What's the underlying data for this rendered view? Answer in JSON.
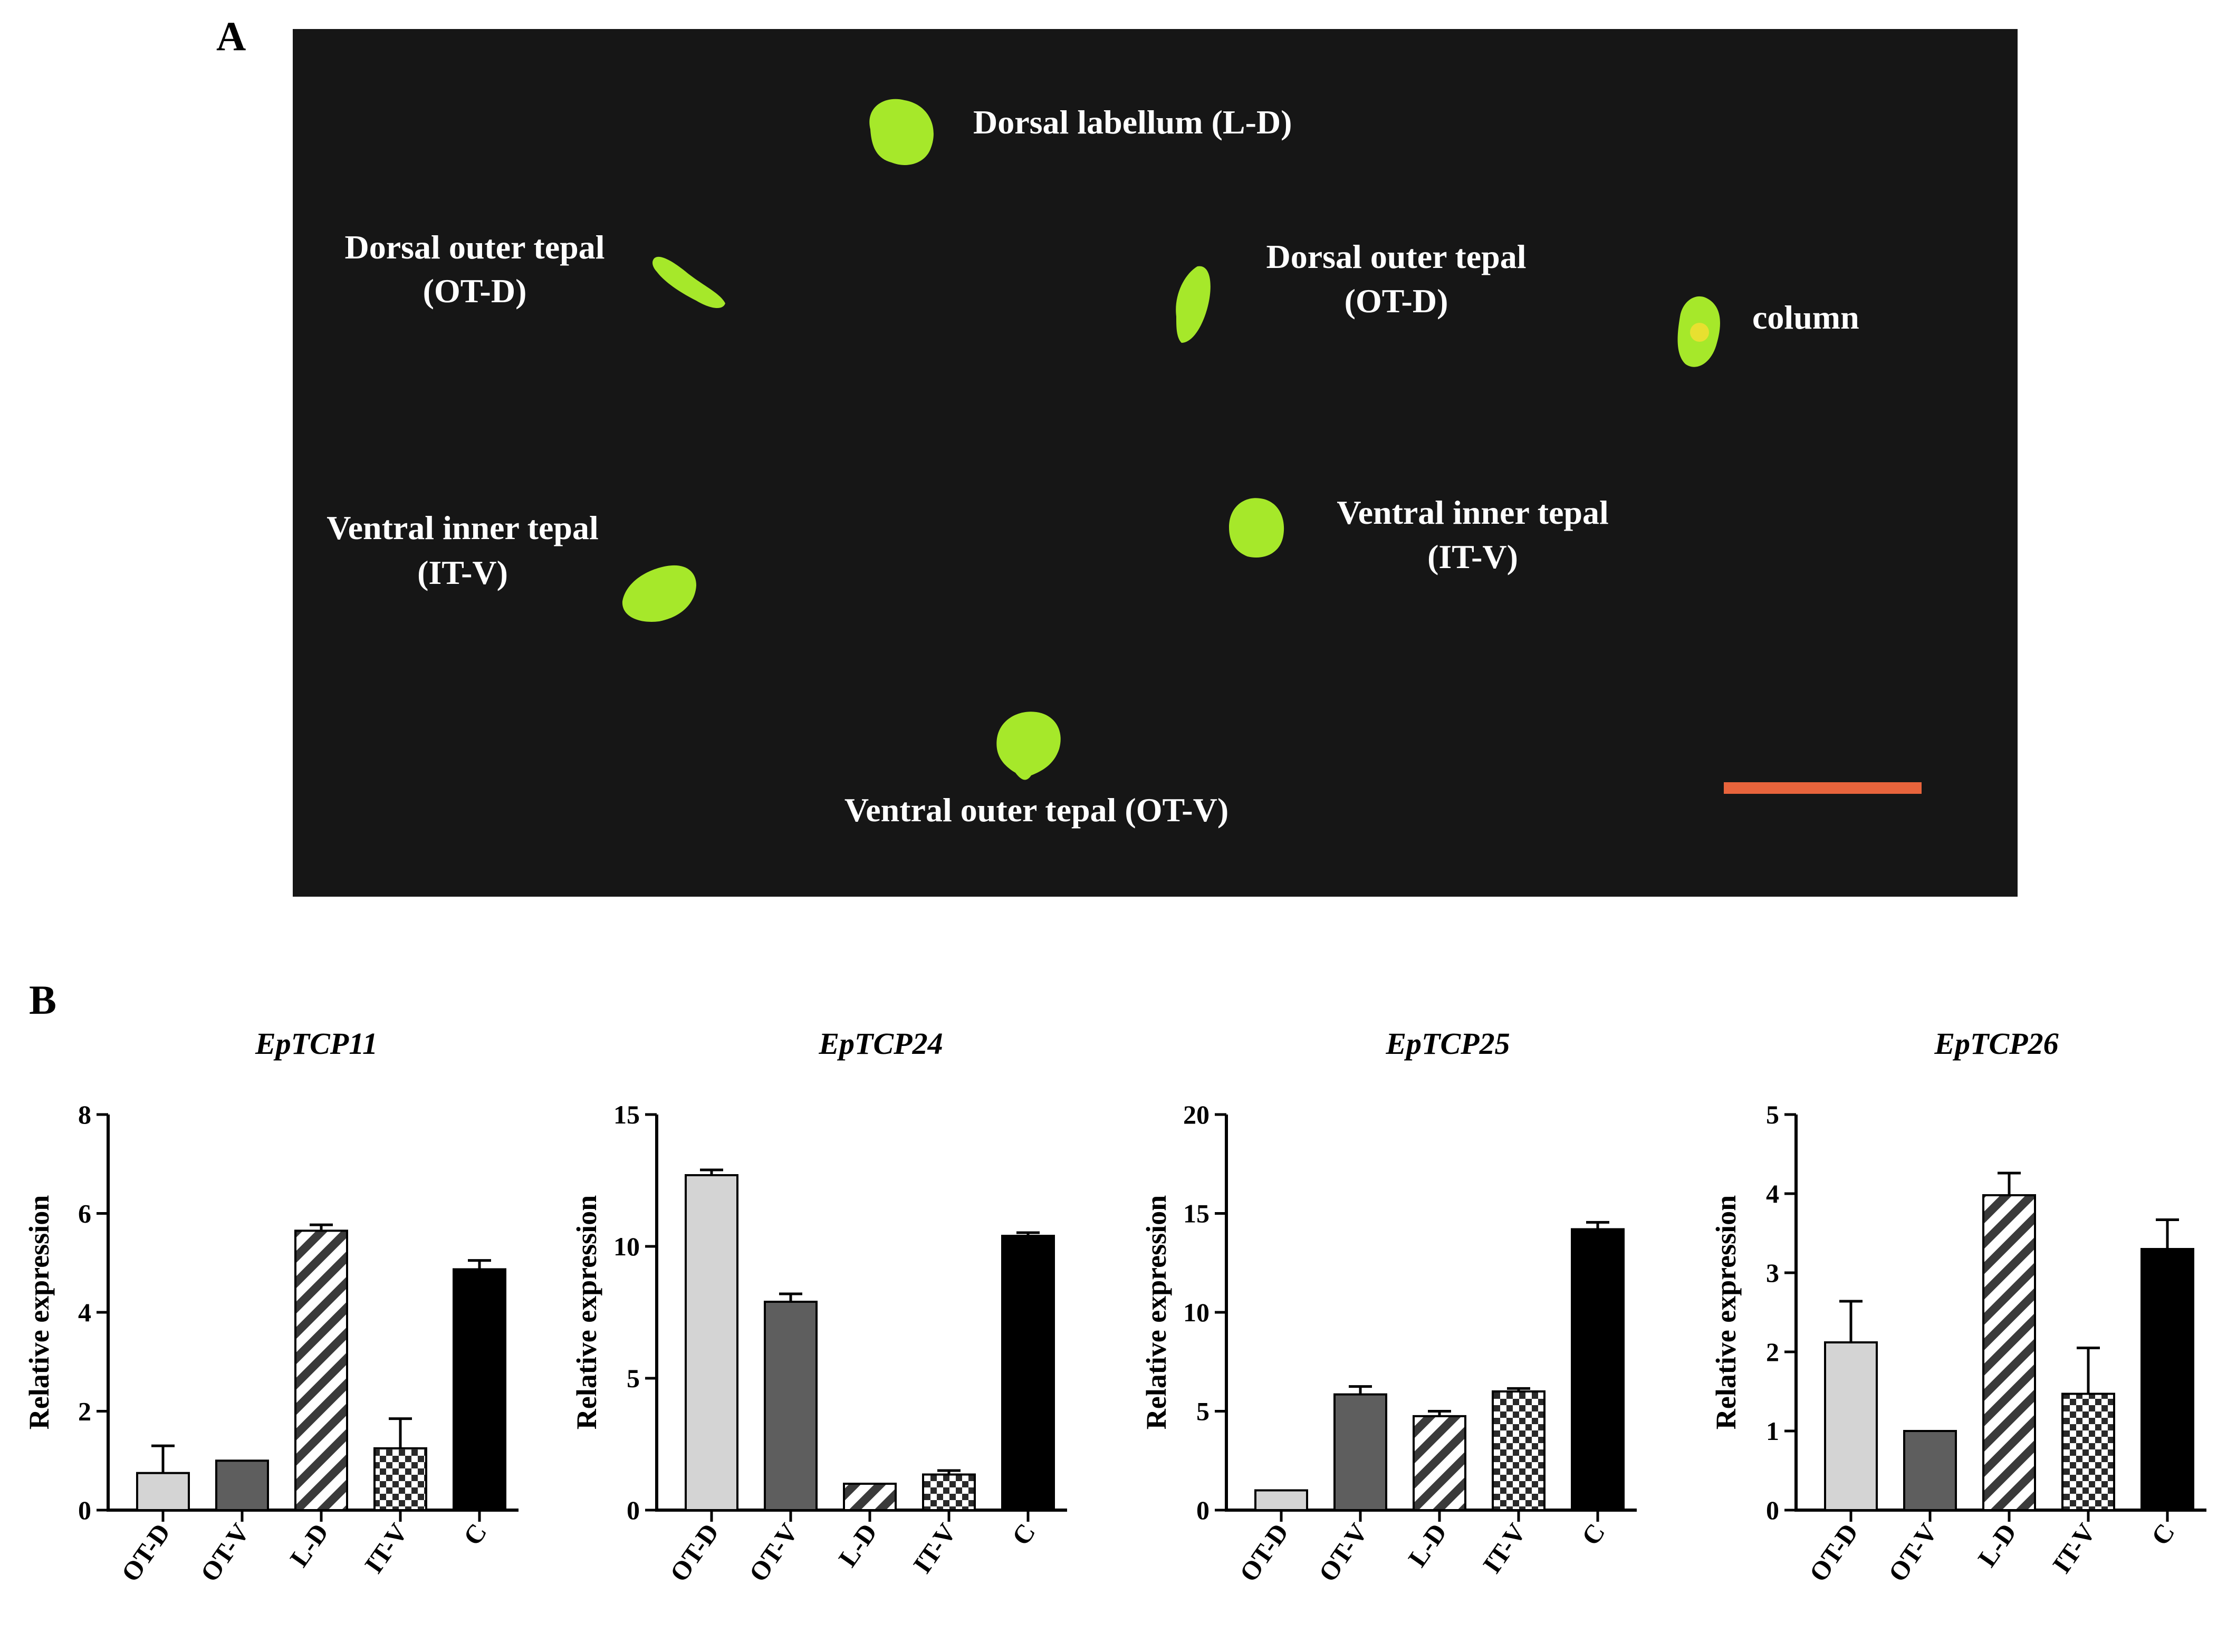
{
  "panel_a": {
    "label": "A",
    "scale_bar_color": "#e8643c",
    "background_color": "#161616",
    "tissue_color": "#a6e82a",
    "labels": [
      {
        "id": "label-dorsal-labellum",
        "text": "Dorsal labellum (L-D)"
      },
      {
        "id": "label-dorsal-outer-left",
        "text": "Dorsal outer tepal",
        "sub": "(OT-D)"
      },
      {
        "id": "label-dorsal-outer-right",
        "text": "Dorsal outer tepal",
        "sub": "(OT-D)"
      },
      {
        "id": "label-column",
        "text": "column"
      },
      {
        "id": "label-ventral-inner-left",
        "text": "Ventral inner tepal",
        "sub": "(IT-V)"
      },
      {
        "id": "label-ventral-inner-right",
        "text": "Ventral inner tepal",
        "sub": "(IT-V)"
      },
      {
        "id": "label-ventral-outer",
        "text": "Ventral outer tepal (OT-V)"
      }
    ]
  },
  "panel_b": {
    "label": "B"
  },
  "chart_data": [
    {
      "type": "bar",
      "title": "EpTCP11",
      "ylabel": "Relative expression",
      "categories": [
        "OT-D",
        "OT-V",
        "L-D",
        "IT-V",
        "C"
      ],
      "values": [
        0.75,
        1.0,
        5.65,
        1.25,
        4.87
      ],
      "errors": [
        0.55,
        0,
        0.12,
        0.6,
        0.18
      ],
      "ylim": [
        0,
        8
      ],
      "yticks": [
        0,
        2,
        4,
        6,
        8
      ]
    },
    {
      "type": "bar",
      "title": "EpTCP24",
      "ylabel": "Relative expression",
      "categories": [
        "OT-D",
        "OT-V",
        "L-D",
        "IT-V",
        "C"
      ],
      "values": [
        12.7,
        7.9,
        1.0,
        1.35,
        10.4
      ],
      "errors": [
        0.2,
        0.3,
        0,
        0.15,
        0.12
      ],
      "ylim": [
        0,
        15
      ],
      "yticks": [
        0,
        5,
        10,
        15
      ]
    },
    {
      "type": "bar",
      "title": "EpTCP25",
      "ylabel": "Relative expression",
      "categories": [
        "OT-D",
        "OT-V",
        "L-D",
        "IT-V",
        "C"
      ],
      "values": [
        1.0,
        5.85,
        4.75,
        6.0,
        14.2
      ],
      "errors": [
        0,
        0.4,
        0.25,
        0.15,
        0.35
      ],
      "ylim": [
        0,
        20
      ],
      "yticks": [
        0,
        5,
        10,
        15,
        20
      ]
    },
    {
      "type": "bar",
      "title": "EpTCP26",
      "ylabel": "Relative expression",
      "categories": [
        "OT-D",
        "OT-V",
        "L-D",
        "IT-V",
        "C"
      ],
      "values": [
        2.12,
        1.0,
        3.98,
        1.47,
        3.3
      ],
      "errors": [
        0.52,
        0,
        0.28,
        0.58,
        0.37
      ],
      "ylim": [
        0,
        5
      ],
      "yticks": [
        0,
        1,
        2,
        3,
        4,
        5
      ]
    }
  ],
  "bar_styles": {
    "fills": [
      "#d4d4d4",
      "#5e5e5e",
      "pattern-diag",
      "pattern-check",
      "#000000"
    ]
  }
}
